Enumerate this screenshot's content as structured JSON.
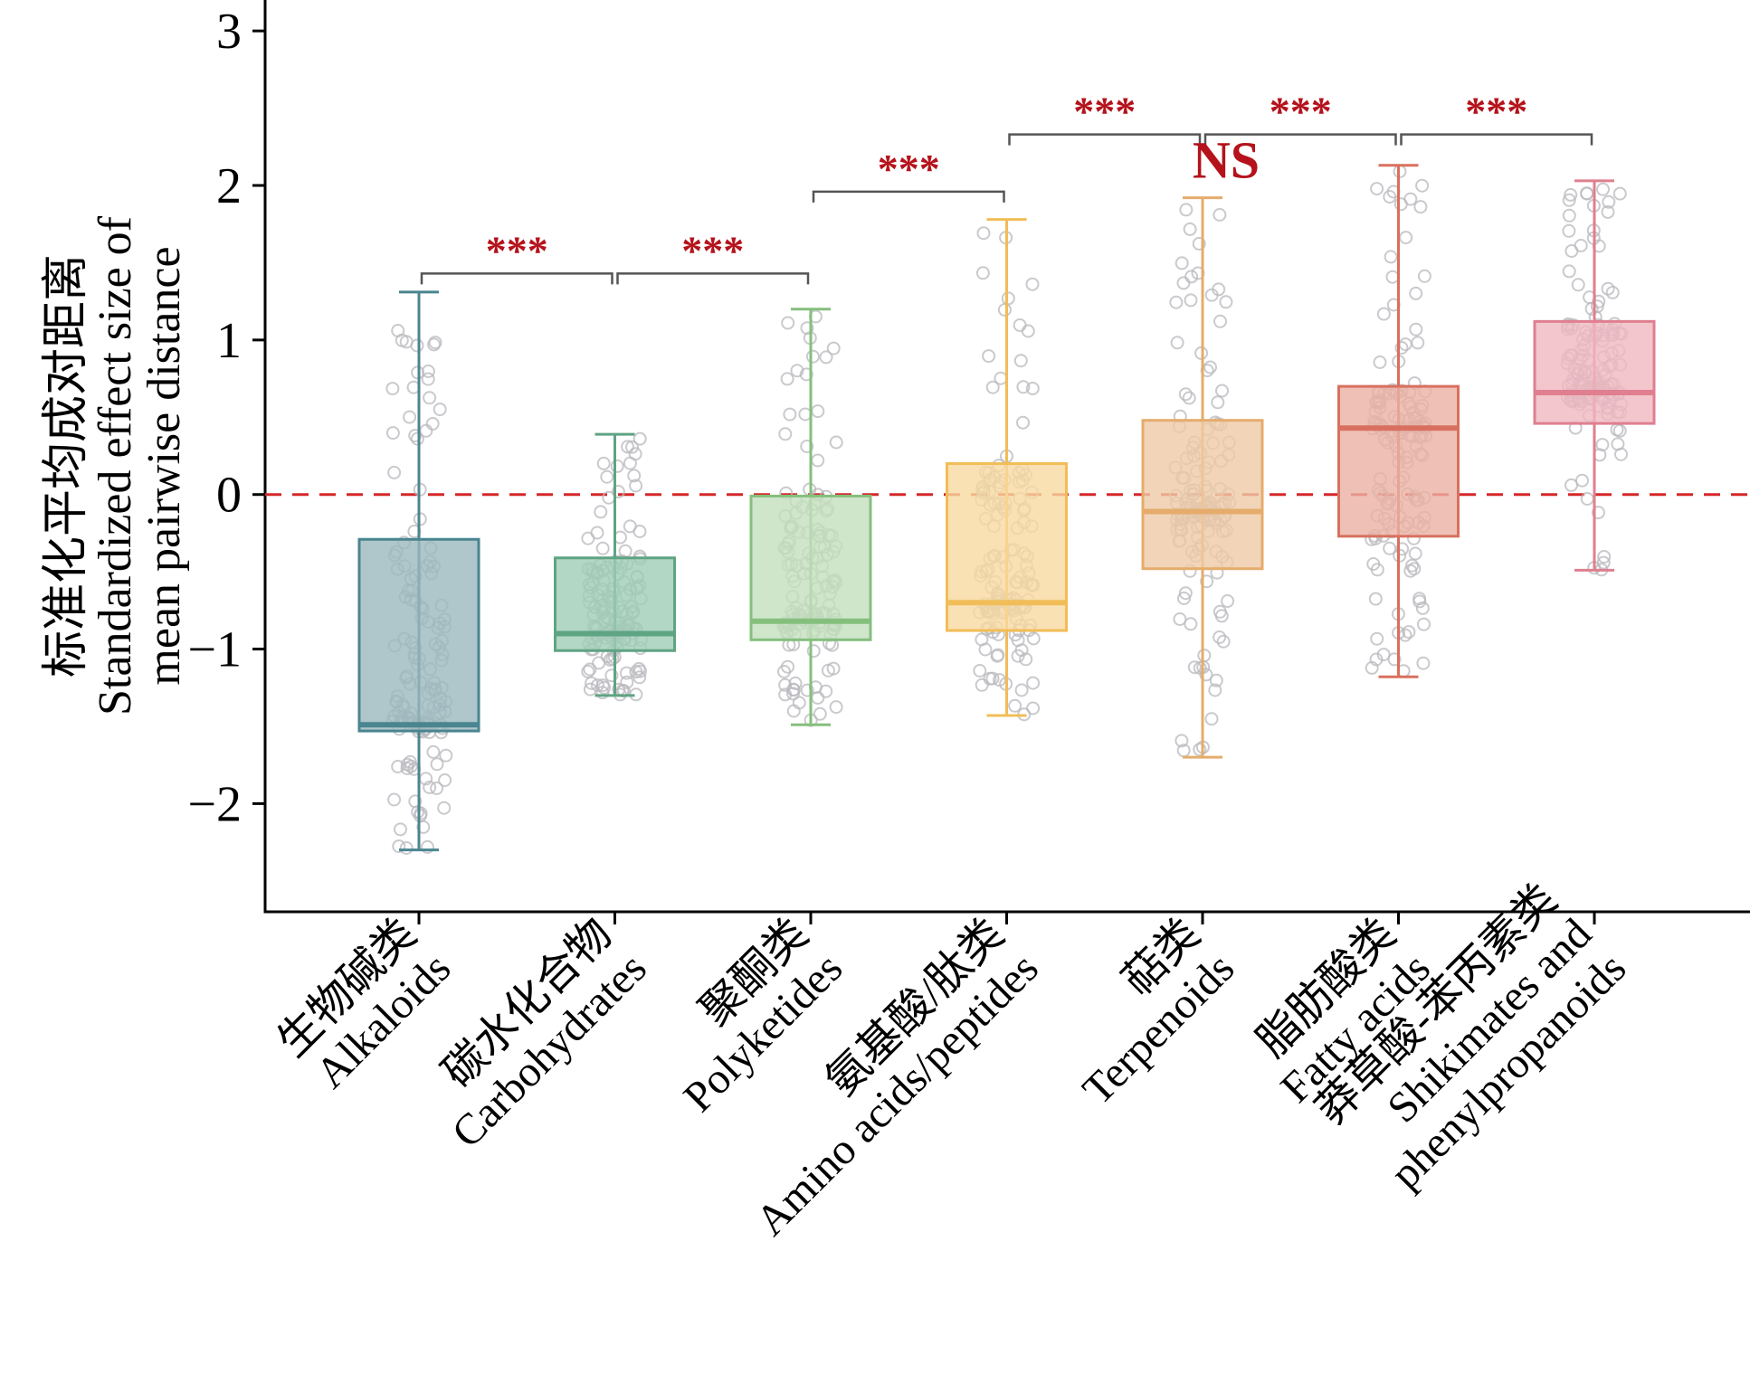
{
  "chart_data": {
    "type": "box",
    "ylabel": [
      "标准化平均成对距离",
      "Standardized effect size of",
      "mean pairwise distance"
    ],
    "ylim": [
      -2.7,
      3.2
    ],
    "yticks": [
      -2,
      -1,
      0,
      1,
      2,
      3
    ],
    "ytick_labels": [
      "−2",
      "−1",
      "0",
      "1",
      "2",
      "3"
    ],
    "reference_line": {
      "y": 0,
      "color": "#d62728",
      "style": "dashed"
    },
    "categories": [
      {
        "id": "alkaloids",
        "label": [
          "生物碱类",
          "Alkaloids"
        ],
        "color": "#4a8590",
        "fill": "#9bb8be",
        "whisker_low": -2.3,
        "q1": -1.53,
        "median": -1.49,
        "q3": -0.29,
        "whisker_high": 1.31
      },
      {
        "id": "carbohydrates",
        "label": [
          "碳水化合物",
          "Carbohydrates"
        ],
        "color": "#5fa483",
        "fill": "#9fcdb7",
        "whisker_low": -1.3,
        "q1": -1.01,
        "median": -0.9,
        "q3": -0.41,
        "whisker_high": 0.39
      },
      {
        "id": "polyketides",
        "label": [
          "聚酮类",
          "Polyketides"
        ],
        "color": "#85bf7d",
        "fill": "#c3e0bd",
        "whisker_low": -1.49,
        "q1": -0.94,
        "median": -0.82,
        "q3": -0.01,
        "whisker_high": 1.2
      },
      {
        "id": "amino",
        "label": [
          "氨基酸/肽类",
          "Amino acids/peptides"
        ],
        "color": "#f1bd57",
        "fill": "#f7d9a0",
        "whisker_low": -1.43,
        "q1": -0.88,
        "median": -0.7,
        "q3": 0.2,
        "whisker_high": 1.78
      },
      {
        "id": "terpenoids",
        "label": [
          "萜类",
          "Terpenoids"
        ],
        "color": "#e5ac6c",
        "fill": "#efcba6",
        "whisker_low": -1.7,
        "q1": -0.48,
        "median": -0.11,
        "q3": 0.48,
        "whisker_high": 1.92
      },
      {
        "id": "fatty",
        "label": [
          "脂肪酸类",
          "Fatty acids"
        ],
        "color": "#d9705f",
        "fill": "#ebb1a4",
        "whisker_low": -1.18,
        "q1": -0.27,
        "median": 0.43,
        "q3": 0.7,
        "whisker_high": 2.13
      },
      {
        "id": "shikimates",
        "label": [
          "莽草酸-苯丙素类",
          "Shikimates and",
          "phenylpropanoids"
        ],
        "color": "#df7f8f",
        "fill": "#f0b8c1",
        "whisker_low": -0.49,
        "q1": 0.46,
        "median": 0.66,
        "q3": 1.12,
        "whisker_high": 2.03
      }
    ],
    "significance": [
      {
        "from": 0,
        "to": 1,
        "y": 1.43,
        "label": "***"
      },
      {
        "from": 1,
        "to": 2,
        "y": 1.43,
        "label": "***"
      },
      {
        "from": 2,
        "to": 3,
        "y": 1.96,
        "label": "***"
      },
      {
        "from": 3,
        "to": 4,
        "y": 2.33,
        "label": "***"
      },
      {
        "from": 4,
        "to": 5,
        "y": 2.33,
        "label": "***"
      },
      {
        "from": 5,
        "to": 6,
        "y": 2.33,
        "label": "***"
      }
    ],
    "annotations": [
      {
        "text": "NS",
        "x": 4.12,
        "y": 2.05
      }
    ],
    "point_color": "#b8b8be"
  }
}
